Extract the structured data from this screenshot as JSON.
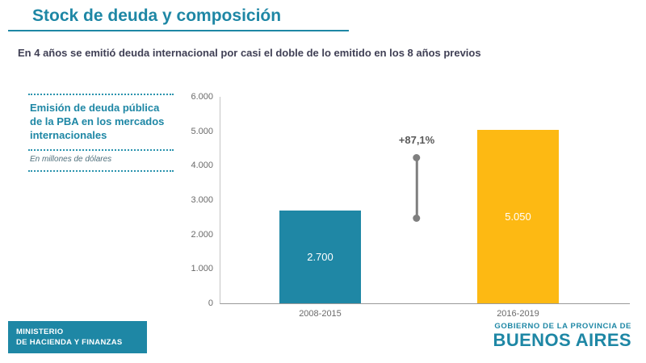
{
  "slide": {
    "title": "Stock de deuda y composición",
    "subtitle": "En 4 años se emitió deuda internacional por casi el doble de lo emitido en los 8 años previos"
  },
  "side_panel": {
    "heading": "Emisión de deuda pública de la PBA en los mercados internacionales",
    "unit_note": "En millones de dólares"
  },
  "chart_data": {
    "type": "bar",
    "title": "Emisión de deuda pública de la PBA en los mercados internacionales",
    "units": "millones de dólares",
    "categories": [
      "2008-2015",
      "2016-2019"
    ],
    "values": [
      2700,
      5050
    ],
    "value_labels": [
      "2.700",
      "5.050"
    ],
    "bar_colors": [
      "#1f87a5",
      "#fdb913"
    ],
    "annotation": "+87,1%",
    "xlabel": "",
    "ylabel": "",
    "ylim": [
      0,
      6000
    ],
    "ytick_labels": [
      "6.000",
      "5.000",
      "4.000",
      "3.000",
      "2.000",
      "1.000",
      "0"
    ],
    "grid": false,
    "legend": false
  },
  "footer": {
    "ministry_line1": "MINISTERIO",
    "ministry_line2": "DE HACIENDA Y FINANZAS",
    "government_line1": "GOBIERNO DE LA PROVINCIA DE",
    "government_line2": "BUENOS AIRES"
  },
  "colors": {
    "accent_teal": "#1e87a5",
    "bar_teal": "#1f87a5",
    "bar_yellow": "#fdb913",
    "annotation_gray": "#7f7f7f",
    "subtitle_dark": "#404055"
  }
}
